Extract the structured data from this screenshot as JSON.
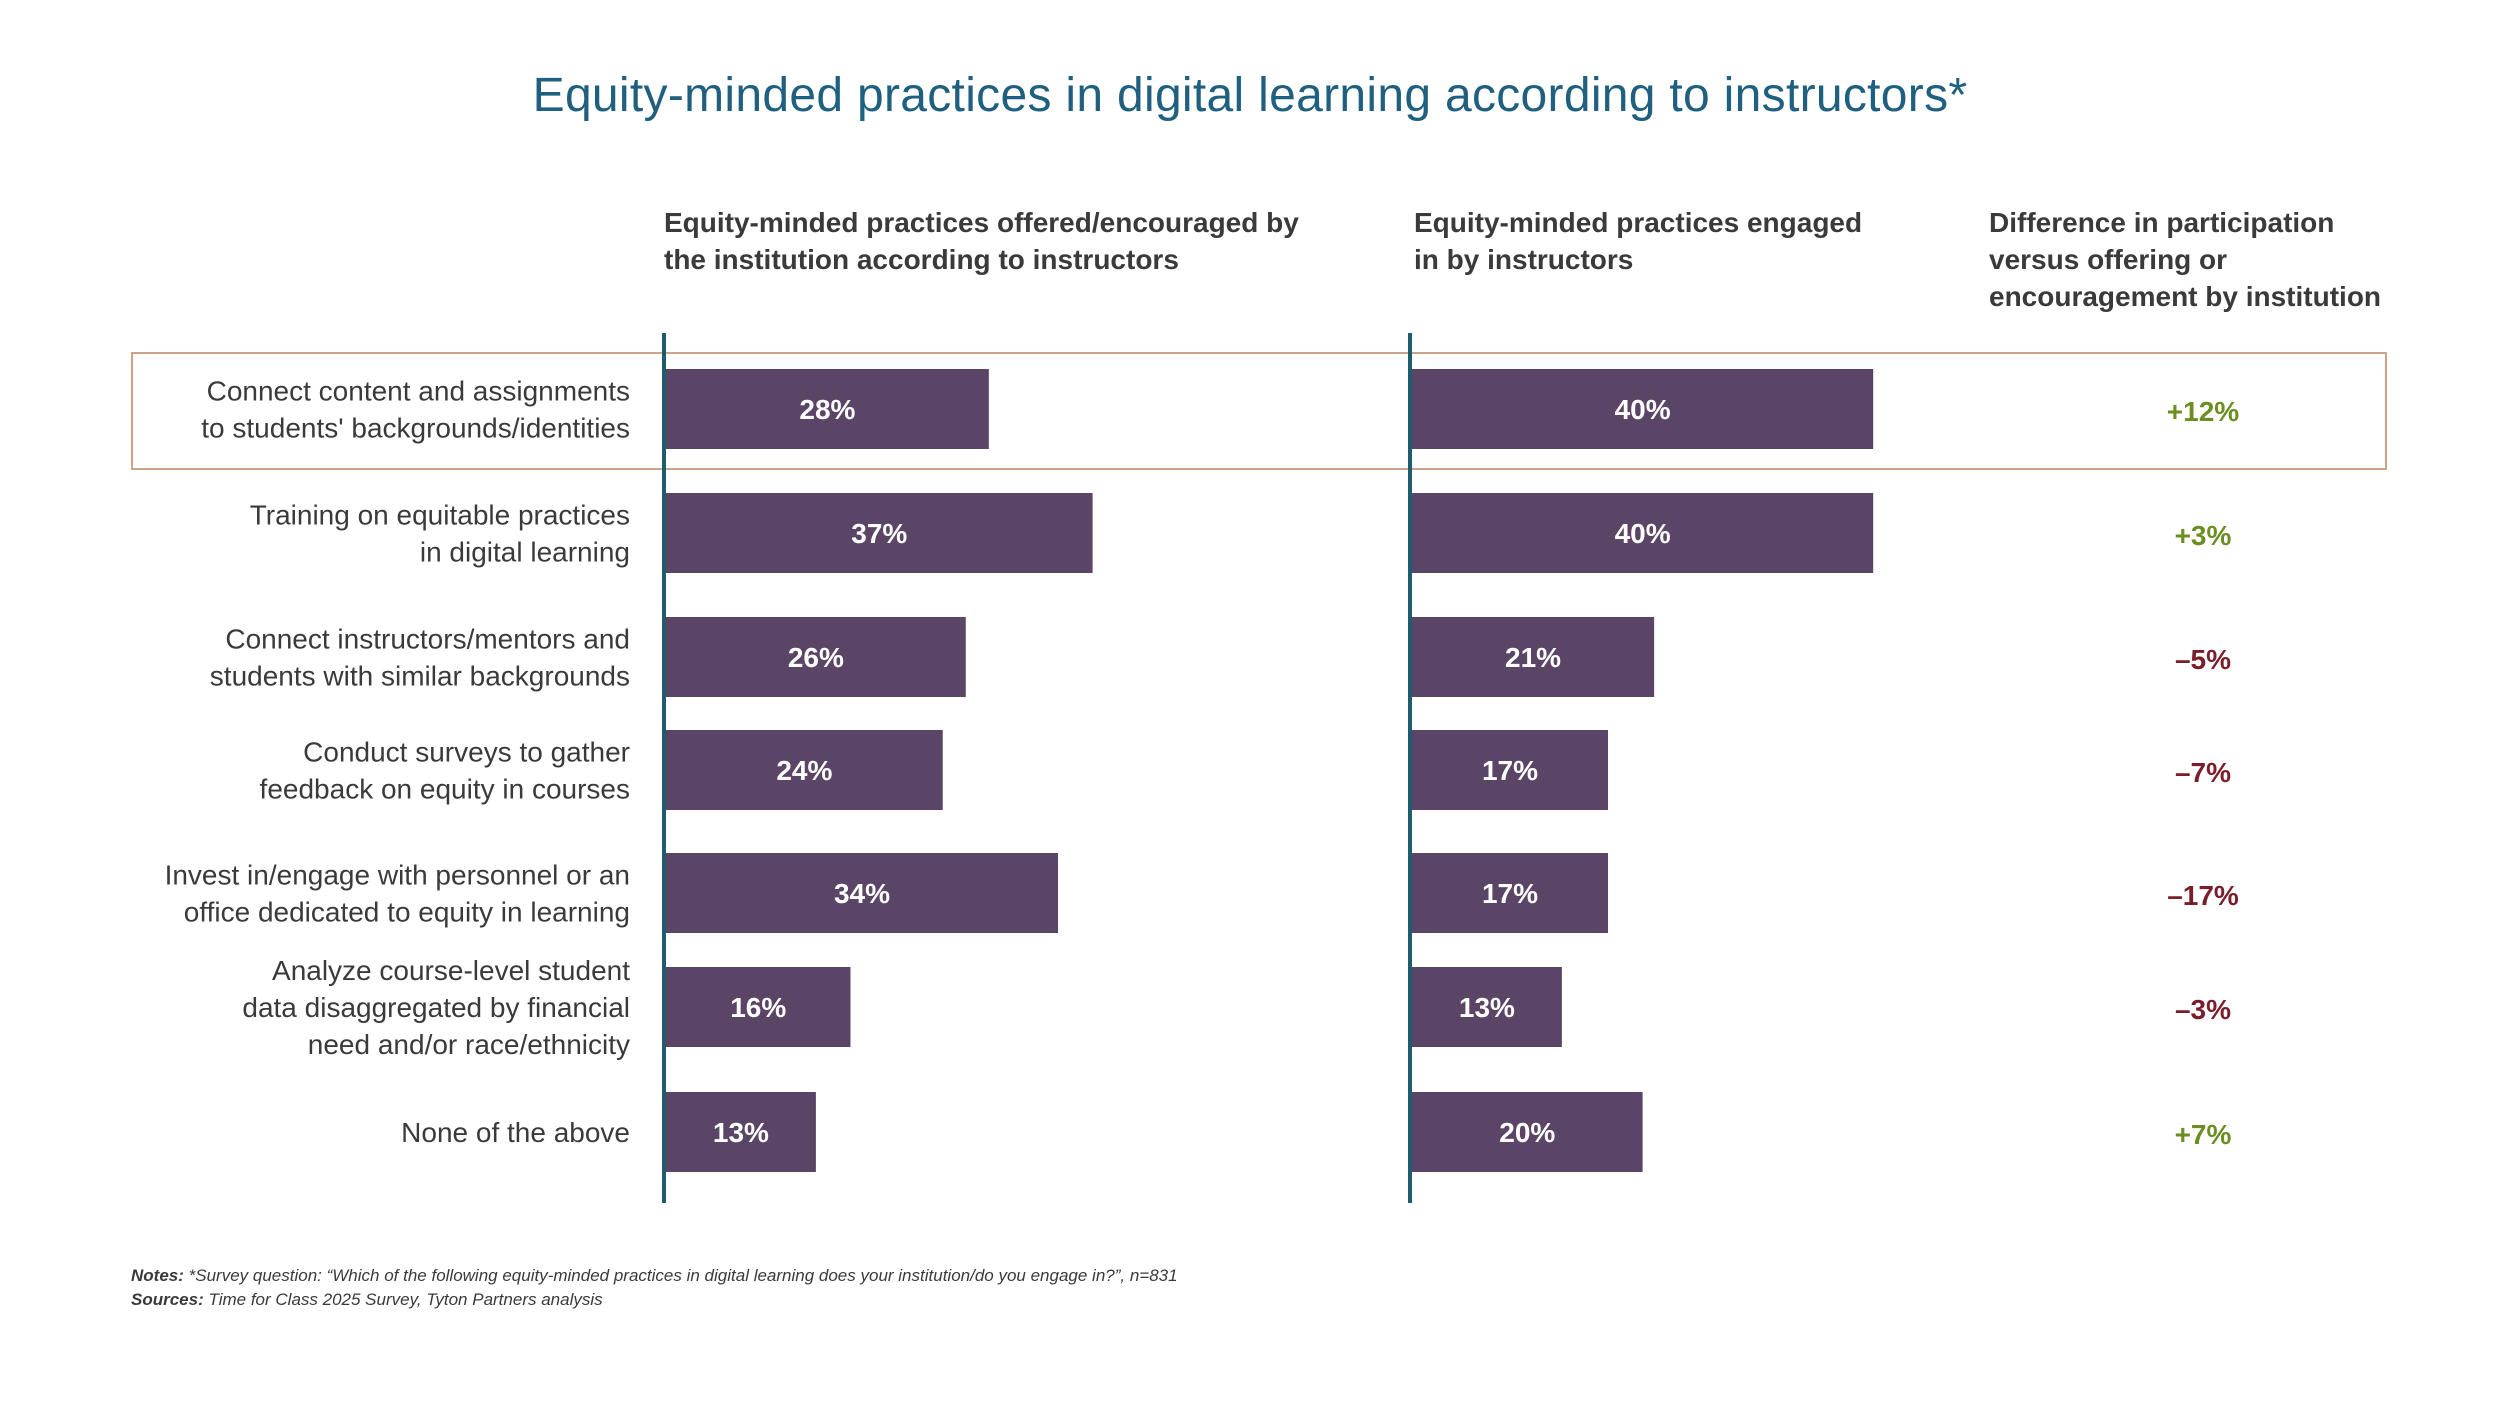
{
  "chart_data": {
    "type": "bar",
    "title": "Equity-minded practices in digital learning according to instructors*",
    "column_headers": [
      "Equity-minded practices offered/encouraged by the institution according to instructors",
      "Equity-minded practices engaged in by instructors",
      "Difference in participation versus offering or encouragement by institution"
    ],
    "categories": [
      "Connect content and assignments to students' backgrounds/identities",
      "Training on equitable practices in digital learning",
      "Connect instructors/mentors and students with similar backgrounds",
      "Conduct surveys to gather feedback on equity in courses",
      "Invest in/engage with personnel or an office dedicated to equity in learning",
      "Analyze course-level student data disaggregated by financial need and/or race/ethnicity",
      "None of the above"
    ],
    "category_lines": [
      [
        "Connect content and assignments",
        "to students' backgrounds/identities"
      ],
      [
        "Training on equitable practices",
        "in digital learning"
      ],
      [
        "Connect instructors/mentors and",
        "students with similar backgrounds"
      ],
      [
        "Conduct surveys to gather",
        "feedback on equity in courses"
      ],
      [
        "Invest in/engage with personnel or an",
        "office dedicated to equity in learning"
      ],
      [
        "Analyze course-level student",
        "data disaggregated by financial",
        "need and/or race/ethnicity"
      ],
      [
        "None of the above"
      ]
    ],
    "series": [
      {
        "values": [
          28,
          37,
          26,
          24,
          34,
          16,
          13
        ]
      },
      {
        "values": [
          40,
          40,
          21,
          17,
          17,
          13,
          20
        ]
      }
    ],
    "value_labels_1": [
      "28%",
      "37%",
      "26%",
      "24%",
      "34%",
      "16%",
      "13%"
    ],
    "value_labels_2": [
      "40%",
      "40%",
      "21%",
      "17%",
      "17%",
      "13%",
      "20%"
    ],
    "difference": [
      "+12%",
      "+3%",
      "–5%",
      "–7%",
      "–17%",
      "–3%",
      "+7%"
    ],
    "highlighted_category_index": 0,
    "unit": "%"
  },
  "colors": {
    "bar": "#5b4566",
    "axis": "#1f5c72",
    "title": "#1f5f7f",
    "positive": "#6b8e23",
    "negative": "#7a1e2b",
    "highlight_border": "#c9a488",
    "text": "#3a3a3a"
  },
  "notes": {
    "notes_label": "Notes:",
    "notes_text": " *Survey question: “Which of the following equity-minded practices in digital learning does your institution/do you engage in?”, n=831",
    "sources_label": "Sources:",
    "sources_text": " Time for Class 2025 Survey, Tyton Partners analysis"
  }
}
